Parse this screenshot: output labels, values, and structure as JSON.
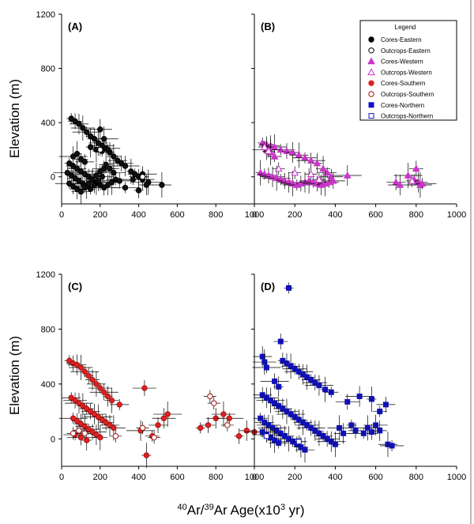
{
  "figure": {
    "ylabel": "Elevation (m)",
    "xlabel_main": "Ar/",
    "xlabel_sup1": "40",
    "xlabel_sup2": "39",
    "xlabel_ar": "Ar Age(x10",
    "xlabel_sup3": "3",
    "xlabel_tail": " yr)",
    "legend_title": "Legend"
  },
  "legend": [
    {
      "label": "Cores-Eastern",
      "color": "#000000",
      "shape": "circle",
      "filled": true
    },
    {
      "label": "Outcrops-Eastern",
      "color": "#000000",
      "shape": "circle",
      "filled": false
    },
    {
      "label": "Cores-Western",
      "color": "#cc33cc",
      "shape": "triangle",
      "filled": true
    },
    {
      "label": "Outcrops-Western",
      "color": "#cc33cc",
      "shape": "triangle",
      "filled": false
    },
    {
      "label": "Cores-Southern",
      "color": "#dd2222",
      "shape": "circle",
      "filled": true
    },
    {
      "label": "Outcrops-Southern",
      "color": "#aa1111",
      "shape": "circle",
      "filled": false
    },
    {
      "label": "Cores-Northern",
      "color": "#1111cc",
      "shape": "square",
      "filled": true
    },
    {
      "label": "Outcrops-Northern",
      "color": "#1111cc",
      "shape": "square",
      "filled": false
    }
  ],
  "chart_data": [
    {
      "type": "scatter",
      "panel": "(A)",
      "series_color": "#000000",
      "series_fill": "#111111",
      "marker": "circle",
      "xlim": [
        0,
        1000
      ],
      "ylim": [
        -200,
        1200
      ],
      "xticks": [
        "0",
        "200",
        "400",
        "600",
        "800",
        "1000"
      ],
      "yticks": [
        "0",
        "400",
        "800",
        "1200"
      ],
      "show_yticks": true,
      "show_legend": false,
      "points": [
        [
          50,
          430
        ],
        [
          70,
          410
        ],
        [
          90,
          390
        ],
        [
          110,
          360
        ],
        [
          130,
          330
        ],
        [
          150,
          300
        ],
        [
          170,
          280
        ],
        [
          190,
          250
        ],
        [
          210,
          230
        ],
        [
          230,
          210
        ],
        [
          250,
          180
        ],
        [
          270,
          150
        ],
        [
          290,
          120
        ],
        [
          310,
          100
        ],
        [
          330,
          80
        ],
        [
          360,
          40
        ],
        [
          380,
          20
        ],
        [
          400,
          0
        ],
        [
          420,
          -20
        ],
        [
          450,
          -40
        ],
        [
          40,
          100
        ],
        [
          60,
          80
        ],
        [
          80,
          60
        ],
        [
          100,
          40
        ],
        [
          120,
          20
        ],
        [
          140,
          0
        ],
        [
          160,
          -20
        ],
        [
          180,
          -40
        ],
        [
          200,
          -60
        ],
        [
          220,
          -80
        ],
        [
          240,
          -60
        ],
        [
          260,
          -40
        ],
        [
          280,
          -20
        ],
        [
          300,
          -30
        ],
        [
          30,
          30
        ],
        [
          50,
          10
        ],
        [
          70,
          -10
        ],
        [
          90,
          -30
        ],
        [
          110,
          -50
        ],
        [
          130,
          -70
        ],
        [
          150,
          -90
        ],
        [
          170,
          -60
        ],
        [
          190,
          -30
        ],
        [
          210,
          0
        ],
        [
          40,
          -50
        ],
        [
          60,
          -70
        ],
        [
          80,
          -90
        ],
        [
          100,
          -110
        ],
        [
          120,
          -80
        ],
        [
          140,
          -50
        ],
        [
          160,
          -20
        ],
        [
          180,
          10
        ],
        [
          200,
          40
        ],
        [
          220,
          60
        ],
        [
          60,
          150
        ],
        [
          80,
          170
        ],
        [
          100,
          130
        ],
        [
          120,
          110
        ],
        [
          200,
          350
        ],
        [
          220,
          280
        ],
        [
          240,
          200
        ],
        [
          230,
          90
        ],
        [
          250,
          60
        ],
        [
          270,
          30
        ],
        [
          330,
          -80
        ],
        [
          400,
          -100
        ],
        [
          440,
          -60
        ],
        [
          520,
          -60
        ],
        [
          370,
          -20
        ],
        [
          420,
          20
        ],
        [
          150,
          220
        ],
        [
          180,
          200
        ],
        [
          210,
          190
        ]
      ],
      "open_points": [
        [
          200,
          200
        ],
        [
          420,
          0
        ]
      ]
    },
    {
      "type": "scatter",
      "panel": "(B)",
      "series_color": "#cc33cc",
      "series_fill": "#cc33cc",
      "marker": "triangle",
      "xlim": [
        0,
        1000
      ],
      "ylim": [
        -200,
        1200
      ],
      "xticks": [
        "0",
        "200",
        "400",
        "600",
        "800",
        "1000"
      ],
      "yticks": [],
      "show_yticks": false,
      "show_legend": true,
      "points": [
        [
          40,
          250
        ],
        [
          60,
          240
        ],
        [
          80,
          230
        ],
        [
          100,
          220
        ],
        [
          130,
          200
        ],
        [
          160,
          190
        ],
        [
          190,
          180
        ],
        [
          220,
          160
        ],
        [
          250,
          140
        ],
        [
          280,
          120
        ],
        [
          310,
          100
        ],
        [
          340,
          60
        ],
        [
          360,
          30
        ],
        [
          380,
          0
        ],
        [
          460,
          10
        ],
        [
          30,
          30
        ],
        [
          50,
          20
        ],
        [
          70,
          10
        ],
        [
          90,
          0
        ],
        [
          110,
          -10
        ],
        [
          130,
          -20
        ],
        [
          150,
          -30
        ],
        [
          170,
          -40
        ],
        [
          190,
          -50
        ],
        [
          210,
          -60
        ],
        [
          230,
          -50
        ],
        [
          250,
          -40
        ],
        [
          270,
          -30
        ],
        [
          290,
          -40
        ],
        [
          310,
          -50
        ],
        [
          330,
          -60
        ],
        [
          350,
          -50
        ],
        [
          370,
          -40
        ],
        [
          390,
          -30
        ],
        [
          60,
          200
        ],
        [
          80,
          180
        ],
        [
          100,
          150
        ],
        [
          700,
          -40
        ],
        [
          720,
          -60
        ],
        [
          760,
          10
        ],
        [
          790,
          -20
        ],
        [
          800,
          60
        ],
        [
          810,
          -40
        ],
        [
          820,
          -60
        ],
        [
          830,
          -50
        ]
      ],
      "open_points": [
        [
          50,
          220
        ],
        [
          70,
          190
        ],
        [
          120,
          60
        ],
        [
          200,
          30
        ],
        [
          280,
          20
        ],
        [
          320,
          -20
        ],
        [
          780,
          -30
        ]
      ]
    },
    {
      "type": "scatter",
      "panel": "(C)",
      "series_color": "#aa1111",
      "series_fill": "#dd2222",
      "marker": "circle",
      "xlim": [
        0,
        1000
      ],
      "ylim": [
        -200,
        1200
      ],
      "xticks": [
        "0",
        "200",
        "400",
        "600",
        "800",
        "1000"
      ],
      "yticks": [
        "0",
        "400",
        "800",
        "1200"
      ],
      "show_yticks": true,
      "show_legend": false,
      "points": [
        [
          40,
          570
        ],
        [
          60,
          550
        ],
        [
          80,
          540
        ],
        [
          100,
          520
        ],
        [
          120,
          490
        ],
        [
          140,
          460
        ],
        [
          160,
          430
        ],
        [
          180,
          400
        ],
        [
          200,
          370
        ],
        [
          220,
          340
        ],
        [
          240,
          310
        ],
        [
          260,
          280
        ],
        [
          50,
          300
        ],
        [
          70,
          280
        ],
        [
          90,
          260
        ],
        [
          110,
          240
        ],
        [
          130,
          220
        ],
        [
          150,
          200
        ],
        [
          170,
          180
        ],
        [
          190,
          160
        ],
        [
          210,
          140
        ],
        [
          230,
          120
        ],
        [
          250,
          100
        ],
        [
          270,
          80
        ],
        [
          60,
          150
        ],
        [
          80,
          130
        ],
        [
          100,
          110
        ],
        [
          120,
          90
        ],
        [
          140,
          70
        ],
        [
          160,
          50
        ],
        [
          180,
          30
        ],
        [
          200,
          10
        ],
        [
          300,
          250
        ],
        [
          430,
          370
        ],
        [
          410,
          60
        ],
        [
          440,
          -120
        ],
        [
          470,
          20
        ],
        [
          500,
          100
        ],
        [
          530,
          150
        ],
        [
          550,
          180
        ],
        [
          720,
          80
        ],
        [
          760,
          100
        ],
        [
          800,
          150
        ],
        [
          840,
          180
        ],
        [
          870,
          150
        ],
        [
          920,
          20
        ],
        [
          960,
          60
        ],
        [
          1000,
          50
        ],
        [
          70,
          30
        ],
        [
          100,
          10
        ],
        [
          130,
          -10
        ]
      ],
      "open_points": [
        [
          60,
          40
        ],
        [
          90,
          60
        ],
        [
          120,
          40
        ],
        [
          280,
          20
        ],
        [
          420,
          80
        ],
        [
          480,
          10
        ],
        [
          770,
          310
        ],
        [
          790,
          260
        ],
        [
          860,
          100
        ]
      ]
    },
    {
      "type": "scatter",
      "panel": "(D)",
      "series_color": "#1111cc",
      "series_fill": "#1111aa",
      "marker": "square",
      "xlim": [
        0,
        1000
      ],
      "ylim": [
        -200,
        1200
      ],
      "xticks": [
        "0",
        "200",
        "400",
        "600",
        "800",
        "1000"
      ],
      "yticks": [],
      "show_yticks": false,
      "show_legend": false,
      "points": [
        [
          170,
          1100
        ],
        [
          130,
          710
        ],
        [
          40,
          600
        ],
        [
          50,
          560
        ],
        [
          60,
          520
        ],
        [
          140,
          570
        ],
        [
          160,
          550
        ],
        [
          180,
          530
        ],
        [
          200,
          510
        ],
        [
          220,
          490
        ],
        [
          240,
          470
        ],
        [
          260,
          450
        ],
        [
          280,
          430
        ],
        [
          300,
          410
        ],
        [
          320,
          390
        ],
        [
          350,
          360
        ],
        [
          380,
          340
        ],
        [
          40,
          320
        ],
        [
          60,
          300
        ],
        [
          80,
          280
        ],
        [
          100,
          260
        ],
        [
          120,
          240
        ],
        [
          140,
          220
        ],
        [
          160,
          200
        ],
        [
          180,
          180
        ],
        [
          200,
          160
        ],
        [
          220,
          140
        ],
        [
          240,
          120
        ],
        [
          260,
          100
        ],
        [
          280,
          80
        ],
        [
          300,
          60
        ],
        [
          320,
          40
        ],
        [
          340,
          20
        ],
        [
          360,
          0
        ],
        [
          380,
          -20
        ],
        [
          400,
          -40
        ],
        [
          30,
          150
        ],
        [
          50,
          120
        ],
        [
          70,
          100
        ],
        [
          90,
          80
        ],
        [
          110,
          60
        ],
        [
          130,
          40
        ],
        [
          150,
          20
        ],
        [
          170,
          0
        ],
        [
          190,
          -20
        ],
        [
          210,
          -40
        ],
        [
          230,
          -60
        ],
        [
          250,
          -80
        ],
        [
          40,
          50
        ],
        [
          60,
          30
        ],
        [
          80,
          10
        ],
        [
          100,
          -10
        ],
        [
          120,
          -30
        ],
        [
          460,
          270
        ],
        [
          520,
          310
        ],
        [
          580,
          290
        ],
        [
          620,
          200
        ],
        [
          650,
          250
        ],
        [
          600,
          100
        ],
        [
          560,
          80
        ],
        [
          480,
          100
        ],
        [
          500,
          60
        ],
        [
          440,
          40
        ],
        [
          420,
          80
        ],
        [
          540,
          40
        ],
        [
          580,
          50
        ],
        [
          620,
          60
        ],
        [
          660,
          -40
        ],
        [
          680,
          -50
        ],
        [
          100,
          420
        ],
        [
          120,
          380
        ]
      ],
      "open_points": [
        [
          60,
          20
        ],
        [
          220,
          -20
        ]
      ]
    }
  ]
}
